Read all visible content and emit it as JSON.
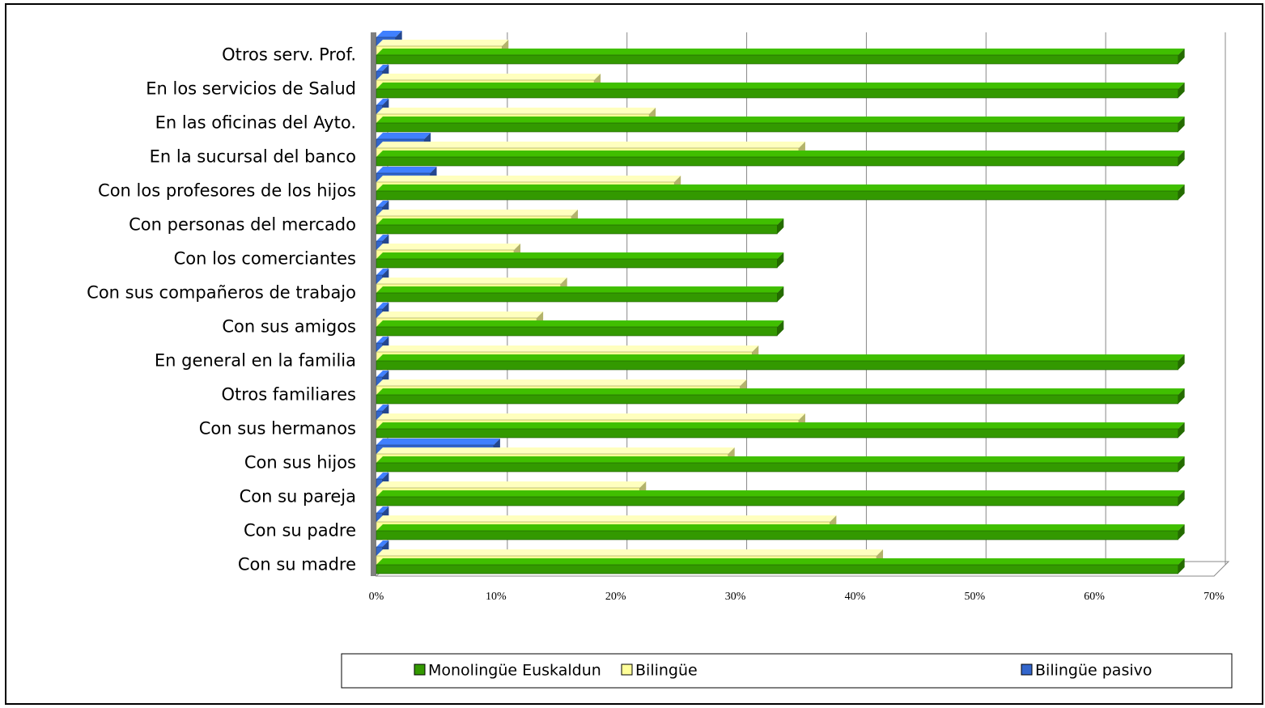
{
  "chart_data": {
    "type": "bar",
    "orientation": "horizontal",
    "categories": [
      "Otros serv. Prof.",
      "En los servicios de Salud",
      "En las oficinas del Ayto.",
      "En la sucursal del banco",
      "Con los profesores de los hijos",
      "Con personas del mercado",
      "Con los comerciantes",
      "Con sus compañeros de trabajo",
      "Con sus amigos",
      "En general en la familia",
      "Otros familiares",
      "Con sus hermanos",
      "Con sus hijos",
      "Con su pareja",
      "Con su padre",
      "Con su madre"
    ],
    "series": [
      {
        "name": "Monolingüe Euskaldun",
        "color": "#339900",
        "values": [
          67,
          67,
          67,
          67,
          67,
          33.5,
          33.5,
          33.5,
          33.5,
          67,
          67,
          67,
          67,
          67,
          67,
          67
        ]
      },
      {
        "name": "Bilingüe",
        "color": "#ffff99",
        "values": [
          10.5,
          18.2,
          22.8,
          35.3,
          24.9,
          16.3,
          11.5,
          15.4,
          13.4,
          31.4,
          30.4,
          35.3,
          29.4,
          22,
          37.9,
          41.8
        ]
      },
      {
        "name": "Bilingüe pasivo",
        "color": "#3366cc",
        "values": [
          1.6,
          0.5,
          0.5,
          4,
          4.5,
          0.5,
          0.5,
          0.5,
          0.5,
          0.5,
          0.5,
          0.5,
          9.8,
          0.5,
          0.5,
          0.5
        ]
      }
    ],
    "xlim": [
      0,
      70
    ],
    "xticks": [
      {
        "value": 0,
        "label": "0%"
      },
      {
        "value": 10,
        "label": "10%"
      },
      {
        "value": 20,
        "label": "20%"
      },
      {
        "value": 30,
        "label": "30%"
      },
      {
        "value": 40,
        "label": "40%"
      },
      {
        "value": 50,
        "label": "50%"
      },
      {
        "value": 60,
        "label": "60%"
      },
      {
        "value": 70,
        "label": "70%"
      }
    ],
    "grid": true,
    "legend": "bottom"
  }
}
